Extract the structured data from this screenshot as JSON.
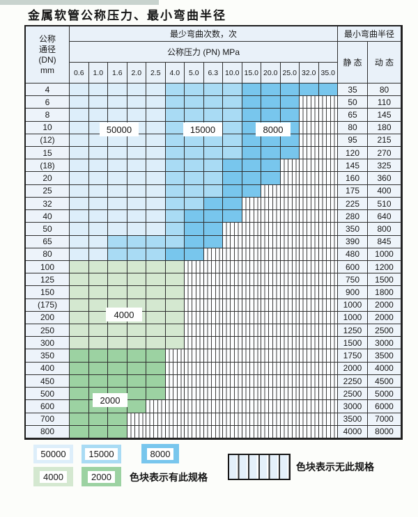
{
  "title": "金属软管公称压力、最小弯曲半径",
  "colors": {
    "b1": "#ddeefa",
    "b2": "#a9dbf4",
    "b3": "#78c6ed",
    "g1": "#d4e8d0",
    "g2": "#9cd2a2",
    "header_bg": "#e9f1f9"
  },
  "band_values": {
    "b1": "50000",
    "b2": "15000",
    "b3": "8000",
    "g1": "4000",
    "g2": "2000",
    "x": "无此规格"
  },
  "table": {
    "header": {
      "dn_label_lines": [
        "公称",
        "通径",
        "(DN)",
        "mm"
      ],
      "bend_cycles_label": "最少弯曲次数，次",
      "pressure_label": "公称压力 (PN) MPa",
      "radius_label": "最小弯曲半径",
      "static_label": "静 态",
      "dynamic_label": "动 态",
      "pressure_columns": [
        "0.6",
        "1.0",
        "1.6",
        "2.0",
        "2.5",
        "4.0",
        "5.0",
        "6.3",
        "10.0",
        "15.0",
        "20.0",
        "25.0",
        "32.0",
        "35.0"
      ]
    },
    "region_labels": [
      "50000",
      "15000",
      "8000",
      "4000",
      "2000"
    ],
    "rows": [
      {
        "dn": "4",
        "cells": [
          "b1",
          "b1",
          "b1",
          "b1",
          "b1",
          "b2",
          "b2",
          "b2",
          "b2",
          "b3",
          "b3",
          "b3",
          "b3",
          "b3"
        ],
        "static": "35",
        "dynamic": "80"
      },
      {
        "dn": "6",
        "cells": [
          "b1",
          "b1",
          "b1",
          "b1",
          "b1",
          "b2",
          "b2",
          "b2",
          "b2",
          "b3",
          "b3",
          "b3",
          "x",
          "x"
        ],
        "static": "50",
        "dynamic": "110"
      },
      {
        "dn": "8",
        "cells": [
          "b1",
          "b1",
          "b1",
          "b1",
          "b1",
          "b2",
          "b2",
          "b2",
          "b2",
          "b3",
          "b3",
          "b3",
          "x",
          "x"
        ],
        "static": "65",
        "dynamic": "145"
      },
      {
        "dn": "10",
        "cells": [
          "b1",
          "b1",
          "b1",
          "b1",
          "b1",
          "b2",
          "b2",
          "b2",
          "b2",
          "b3",
          "b3",
          "b3",
          "x",
          "x"
        ],
        "static": "80",
        "dynamic": "180"
      },
      {
        "dn": "(12)",
        "cells": [
          "b1",
          "b1",
          "b1",
          "b1",
          "b1",
          "b2",
          "b2",
          "b2",
          "b2",
          "b3",
          "b3",
          "b3",
          "x",
          "x"
        ],
        "static": "95",
        "dynamic": "215"
      },
      {
        "dn": "15",
        "cells": [
          "b1",
          "b1",
          "b1",
          "b1",
          "b1",
          "b2",
          "b2",
          "b2",
          "b2",
          "b3",
          "b3",
          "b3",
          "x",
          "x"
        ],
        "static": "120",
        "dynamic": "270"
      },
      {
        "dn": "(18)",
        "cells": [
          "b1",
          "b1",
          "b1",
          "b1",
          "b1",
          "b2",
          "b2",
          "b2",
          "b3",
          "b3",
          "b3",
          "x",
          "x",
          "x"
        ],
        "static": "145",
        "dynamic": "325"
      },
      {
        "dn": "20",
        "cells": [
          "b1",
          "b1",
          "b1",
          "b1",
          "b1",
          "b2",
          "b2",
          "b2",
          "b3",
          "b3",
          "b3",
          "x",
          "x",
          "x"
        ],
        "static": "160",
        "dynamic": "360"
      },
      {
        "dn": "25",
        "cells": [
          "b1",
          "b1",
          "b1",
          "b1",
          "b1",
          "b2",
          "b2",
          "b2",
          "b3",
          "b3",
          "x",
          "x",
          "x",
          "x"
        ],
        "static": "175",
        "dynamic": "400"
      },
      {
        "dn": "32",
        "cells": [
          "b1",
          "b1",
          "b1",
          "b1",
          "b1",
          "b2",
          "b2",
          "b3",
          "b3",
          "x",
          "x",
          "x",
          "x",
          "x"
        ],
        "static": "225",
        "dynamic": "510"
      },
      {
        "dn": "40",
        "cells": [
          "b1",
          "b1",
          "b1",
          "b1",
          "b1",
          "b2",
          "b3",
          "b3",
          "b3",
          "x",
          "x",
          "x",
          "x",
          "x"
        ],
        "static": "280",
        "dynamic": "640"
      },
      {
        "dn": "50",
        "cells": [
          "b1",
          "b1",
          "b1",
          "b1",
          "b1",
          "b2",
          "b3",
          "b3",
          "x",
          "x",
          "x",
          "x",
          "x",
          "x"
        ],
        "static": "350",
        "dynamic": "800"
      },
      {
        "dn": "65",
        "cells": [
          "b1",
          "b1",
          "b2",
          "b2",
          "b2",
          "b2",
          "b3",
          "b3",
          "x",
          "x",
          "x",
          "x",
          "x",
          "x"
        ],
        "static": "390",
        "dynamic": "845"
      },
      {
        "dn": "80",
        "cells": [
          "b1",
          "b1",
          "b2",
          "b2",
          "b2",
          "b3",
          "b3",
          "x",
          "x",
          "x",
          "x",
          "x",
          "x",
          "x"
        ],
        "static": "480",
        "dynamic": "1000"
      },
      {
        "dn": "100",
        "cells": [
          "g1",
          "g1",
          "g1",
          "g1",
          "g1",
          "g1",
          "x",
          "x",
          "x",
          "x",
          "x",
          "x",
          "x",
          "x"
        ],
        "static": "600",
        "dynamic": "1200"
      },
      {
        "dn": "125",
        "cells": [
          "g1",
          "g1",
          "g1",
          "g1",
          "g1",
          "g1",
          "x",
          "x",
          "x",
          "x",
          "x",
          "x",
          "x",
          "x"
        ],
        "static": "750",
        "dynamic": "1500"
      },
      {
        "dn": "150",
        "cells": [
          "g1",
          "g1",
          "g1",
          "g1",
          "g1",
          "g1",
          "x",
          "x",
          "x",
          "x",
          "x",
          "x",
          "x",
          "x"
        ],
        "static": "900",
        "dynamic": "1800"
      },
      {
        "dn": "(175)",
        "cells": [
          "g1",
          "g1",
          "g1",
          "g1",
          "g1",
          "g1",
          "x",
          "x",
          "x",
          "x",
          "x",
          "x",
          "x",
          "x"
        ],
        "static": "1000",
        "dynamic": "2000"
      },
      {
        "dn": "200",
        "cells": [
          "g1",
          "g1",
          "g1",
          "g1",
          "g1",
          "g1",
          "x",
          "x",
          "x",
          "x",
          "x",
          "x",
          "x",
          "x"
        ],
        "static": "1000",
        "dynamic": "2000"
      },
      {
        "dn": "250",
        "cells": [
          "g1",
          "g1",
          "g1",
          "g1",
          "g1",
          "g1",
          "x",
          "x",
          "x",
          "x",
          "x",
          "x",
          "x",
          "x"
        ],
        "static": "1250",
        "dynamic": "2500"
      },
      {
        "dn": "300",
        "cells": [
          "g1",
          "g1",
          "g1",
          "g1",
          "g1",
          "g1",
          "x",
          "x",
          "x",
          "x",
          "x",
          "x",
          "x",
          "x"
        ],
        "static": "1500",
        "dynamic": "3000"
      },
      {
        "dn": "350",
        "cells": [
          "g2",
          "g2",
          "g2",
          "g2",
          "g2",
          "x",
          "x",
          "x",
          "x",
          "x",
          "x",
          "x",
          "x",
          "x"
        ],
        "static": "1750",
        "dynamic": "3500"
      },
      {
        "dn": "400",
        "cells": [
          "g2",
          "g2",
          "g2",
          "g2",
          "g2",
          "x",
          "x",
          "x",
          "x",
          "x",
          "x",
          "x",
          "x",
          "x"
        ],
        "static": "2000",
        "dynamic": "4000"
      },
      {
        "dn": "450",
        "cells": [
          "g2",
          "g2",
          "g2",
          "g2",
          "g2",
          "x",
          "x",
          "x",
          "x",
          "x",
          "x",
          "x",
          "x",
          "x"
        ],
        "static": "2250",
        "dynamic": "4500"
      },
      {
        "dn": "500",
        "cells": [
          "g2",
          "g2",
          "g2",
          "g2",
          "g2",
          "x",
          "x",
          "x",
          "x",
          "x",
          "x",
          "x",
          "x",
          "x"
        ],
        "static": "2500",
        "dynamic": "5000"
      },
      {
        "dn": "600",
        "cells": [
          "g2",
          "g2",
          "g2",
          "g2",
          "x",
          "x",
          "x",
          "x",
          "x",
          "x",
          "x",
          "x",
          "x",
          "x"
        ],
        "static": "3000",
        "dynamic": "6000"
      },
      {
        "dn": "700",
        "cells": [
          "g2",
          "g2",
          "g2",
          "x",
          "x",
          "x",
          "x",
          "x",
          "x",
          "x",
          "x",
          "x",
          "x",
          "x"
        ],
        "static": "3500",
        "dynamic": "7000"
      },
      {
        "dn": "800",
        "cells": [
          "g2",
          "g2",
          "g2",
          "x",
          "x",
          "x",
          "x",
          "x",
          "x",
          "x",
          "x",
          "x",
          "x",
          "x"
        ],
        "static": "4000",
        "dynamic": "8000"
      }
    ]
  },
  "legend": {
    "swatches": [
      {
        "value": "50000",
        "color_key": "b1"
      },
      {
        "value": "15000",
        "color_key": "b2"
      },
      {
        "value": "8000",
        "color_key": "b3"
      },
      {
        "value": "4000",
        "color_key": "g1"
      },
      {
        "value": "2000",
        "color_key": "g2"
      }
    ],
    "has_spec_text": "色块表示有此规格",
    "no_spec_text": "色块表示无此规格"
  }
}
